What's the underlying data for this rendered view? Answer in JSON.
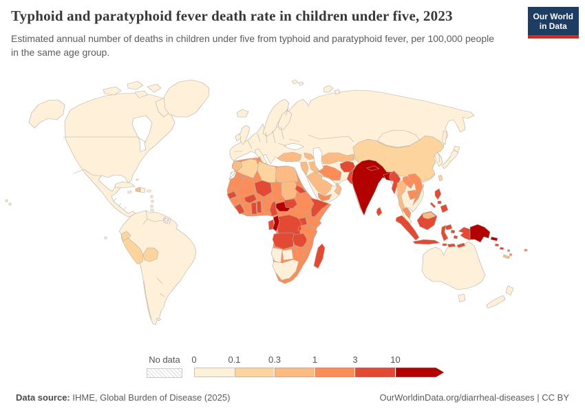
{
  "header": {
    "title": "Typhoid and paratyphoid fever death rate in children under five, 2023",
    "subtitle": "Estimated annual number of deaths in children under five from typhoid and paratyphoid fever, per 100,000 people in the same age group.",
    "logo": {
      "line1": "Our World",
      "line2": "in Data",
      "bg": "#1d3d63",
      "accent": "#d42b20"
    }
  },
  "legend": {
    "no_data_label": "No data",
    "tick_labels": [
      "0",
      "0.1",
      "0.3",
      "1",
      "3",
      "10"
    ],
    "bin_colors": [
      "#fef0d9",
      "#fdd49e",
      "#fdbb84",
      "#fc8d59",
      "#e34a33",
      "#b30000"
    ]
  },
  "footer": {
    "source_label": "Data source:",
    "source_text": " IHME, Global Burden of Disease (2025)",
    "license_text": "OurWorldinData.org/diarrheal-diseases | CC BY"
  },
  "map": {
    "regions": {
      "alaska": 0,
      "north-america": 0,
      "arctic-islands": 0,
      "greenland": 0,
      "iceland": 0,
      "cuba": 0,
      "haiti": 2,
      "dominican-republic": 0,
      "jamaica": 0,
      "puerto-rico": 0,
      "lesser-antilles": 0,
      "bahamas": 0,
      "trinidad": 0,
      "hawaii": 0,
      "south-america": 0,
      "ecuador": 1,
      "peru": 1,
      "bolivia": 1,
      "french-guiana": "no-data",
      "falkland-islands": 0,
      "galapagos": 0,
      "eurasia": 0,
      "scandinavia": 0,
      "finland": 0,
      "uk": 0,
      "ireland": 0,
      "italy": 0,
      "sicily": 0,
      "sardinia": 0,
      "crete": 0,
      "svalbard": 0,
      "novaya-zemlya": 0,
      "sakhalin": 0,
      "japan": 0,
      "turkey": 2,
      "caucasus": 2,
      "levant": 2,
      "iraq": 2,
      "saudi-arabia": 2,
      "yemen": 3,
      "oman": 2,
      "iran": 3,
      "central-asia": 2,
      "afghanistan": 4,
      "pakistan": 4,
      "china": 1,
      "taiwan": 1,
      "hainan": 1,
      "india": 5,
      "nepal": 5,
      "bangladesh": 5,
      "sri-lanka": 4,
      "myanmar": 4,
      "thailand": 2,
      "laos": 3,
      "vietnam": 3,
      "cambodia": 3,
      "malaysia": 3,
      "indonesia": 4,
      "malaysian-borneo": 2,
      "philippines": 4,
      "papua-new-guinea": 5,
      "solomon-islands": 4,
      "vanuatu": 3,
      "fiji": 3,
      "new-caledonia": 2,
      "australia": 0,
      "tasmania": 0,
      "new-zealand": 0,
      "africa-base": 3,
      "morocco": 2,
      "western-sahara": "no-data",
      "algeria": 1,
      "tunisia": 3,
      "libya": 1,
      "egypt": 2,
      "mauritania": 3,
      "mali": 3,
      "niger": 4,
      "chad": 3,
      "sudan": 2,
      "eritrea": 4,
      "ethiopia": 3,
      "somalia": 4,
      "senegal": 4,
      "guinea": 3,
      "sierra-leone-liberia": 4,
      "ivory-coast": 3,
      "ghana": 4,
      "burkina-faso": 4,
      "togo-benin": 4,
      "nigeria": 3,
      "cameroon": 4,
      "central-african-republic": 5,
      "south-sudan": 4,
      "uganda": 4,
      "kenya": 3,
      "rwanda-burundi": 4,
      "gabon": 4,
      "congo": 5,
      "drc": 4,
      "tanzania": 3,
      "angola": 4,
      "zambia": 4,
      "malawi": 3,
      "mozambique": 3,
      "zimbabwe": 3,
      "namibia": 0,
      "botswana": 0,
      "south-africa": 0,
      "madagascar": 4
    }
  },
  "chart_data": {
    "type": "heatmap",
    "subtype": "world-choropleth",
    "title": "Typhoid and paratyphoid fever death rate in children under five, 2023",
    "subtitle": "Estimated annual number of deaths in children under five from typhoid and paratyphoid fever, per 100,000 people in the same age group.",
    "unit": "deaths per 100,000 children under five",
    "year": 2023,
    "legend_position": "bottom",
    "bin_edges": [
      0,
      0.1,
      0.3,
      1,
      3,
      10
    ],
    "open_ended_upper_bin": true,
    "bin_ranges": [
      "0-0.1",
      "0.1-0.3",
      "0.3-1",
      "1-3",
      "3-10",
      "10+"
    ],
    "bin_colors": [
      "#fef0d9",
      "#fdd49e",
      "#fdbb84",
      "#fc8d59",
      "#e34a33",
      "#b30000"
    ],
    "no_data_style": "grey-diagonal-hatch",
    "regions_by_bin": {
      "0-0.1": [
        "United States",
        "Canada",
        "Greenland",
        "Mexico",
        "Central America",
        "Cuba",
        "Dominican Republic",
        "Colombia",
        "Venezuela",
        "Guyana",
        "Suriname",
        "Brazil",
        "Paraguay",
        "Uruguay",
        "Argentina",
        "Chile",
        "All of Europe",
        "Russia",
        "Kazakhstan",
        "Mongolia",
        "Japan",
        "South Korea",
        "Australia",
        "New Zealand",
        "South Africa",
        "Namibia",
        "Botswana"
      ],
      "0.1-0.3": [
        "Peru",
        "Bolivia",
        "Ecuador",
        "China",
        "Algeria",
        "Libya",
        "Taiwan"
      ],
      "0.3-1": [
        "Haiti",
        "Morocco",
        "Egypt",
        "Sudan",
        "Turkey",
        "Syria",
        "Jordan",
        "Iraq",
        "Saudi Arabia",
        "Oman",
        "Central Asian states",
        "Thailand",
        "Malaysia (Borneo)",
        "New Caledonia"
      ],
      "1-3": [
        "Mauritania",
        "Mali",
        "Chad",
        "Tunisia",
        "Guinea",
        "Cote d'Ivoire",
        "Nigeria",
        "Ethiopia",
        "Kenya",
        "Tanzania",
        "Malawi",
        "Mozambique",
        "Zimbabwe",
        "Iran",
        "Yemen",
        "Laos",
        "Vietnam",
        "Cambodia",
        "Malaysia (peninsular)",
        "Fiji",
        "Vanuatu"
      ],
      "3-10": [
        "Senegal",
        "Sierra Leone",
        "Liberia",
        "Ghana",
        "Burkina Faso",
        "Togo",
        "Benin",
        "Niger",
        "Cameroon",
        "South Sudan",
        "Eritrea",
        "Somalia",
        "Uganda",
        "DR Congo",
        "Gabon",
        "Angola",
        "Zambia",
        "Madagascar",
        "Afghanistan",
        "Pakistan",
        "Sri Lanka",
        "Myanmar",
        "Indonesia",
        "Philippines",
        "Solomon Islands"
      ],
      "10+": [
        "India",
        "Nepal",
        "Bangladesh",
        "Central African Republic",
        "Republic of the Congo",
        "Papua New Guinea"
      ],
      "no_data": [
        "Western Sahara",
        "French Guiana"
      ]
    }
  }
}
